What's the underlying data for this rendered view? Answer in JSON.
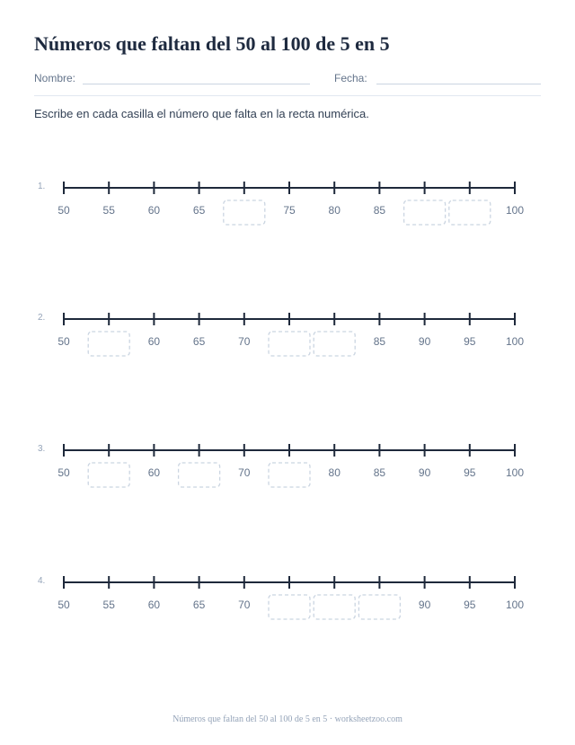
{
  "title": "Números que faltan del 50 al 100 de 5 en 5",
  "header": {
    "name_label": "Nombre:",
    "date_label": "Fecha:"
  },
  "instructions": "Escribe en cada casilla el número que falta en la recta numérica.",
  "colors": {
    "line": "#1e293b",
    "tick_label": "#64748b",
    "box_border": "#cbd5e1"
  },
  "number_lines": [
    {
      "number": "1.",
      "values": [
        "50",
        "55",
        "60",
        "65",
        null,
        "75",
        "80",
        "85",
        null,
        null,
        "100"
      ]
    },
    {
      "number": "2.",
      "values": [
        "50",
        null,
        "60",
        "65",
        "70",
        null,
        null,
        "85",
        "90",
        "95",
        "100"
      ]
    },
    {
      "number": "3.",
      "values": [
        "50",
        null,
        "60",
        null,
        "70",
        null,
        "80",
        "85",
        "90",
        "95",
        "100"
      ]
    },
    {
      "number": "4.",
      "values": [
        "50",
        "55",
        "60",
        "65",
        "70",
        null,
        null,
        null,
        "90",
        "95",
        "100"
      ]
    }
  ],
  "footer": "Números que faltan del 50 al 100 de 5 en 5 · worksheetzoo.com"
}
